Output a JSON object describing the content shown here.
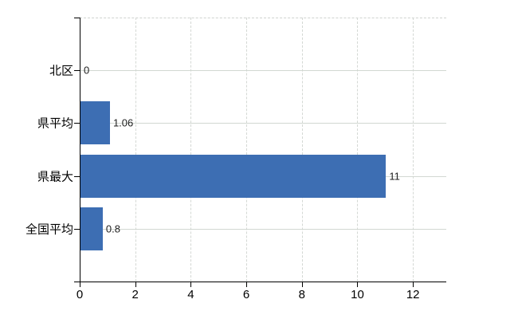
{
  "chart_data": {
    "type": "bar",
    "orientation": "horizontal",
    "title": "",
    "xlabel": "",
    "ylabel": "",
    "categories": [
      "北区",
      "県平均",
      "県最大",
      "全国平均"
    ],
    "values": [
      0,
      1.06,
      11,
      0.8
    ],
    "data_labels": [
      "0",
      "1.06",
      "11",
      "0.8"
    ],
    "x_ticks": [
      "0",
      "2",
      "4",
      "6",
      "8",
      "10",
      "12"
    ],
    "x_tick_values": [
      0,
      2,
      4,
      6,
      8,
      10,
      12
    ],
    "xlim": [
      0,
      13.2
    ],
    "grid": true,
    "legend": false,
    "colors": {
      "bar": "#3D6EB3",
      "axis": "#000000",
      "hgrid": "#d2d8d2",
      "vgrid": "#d4d8d4",
      "plot_border": "#cfd3cf",
      "data_label": "#222222",
      "tick_label": "#000000",
      "background": "#ffffff"
    }
  }
}
